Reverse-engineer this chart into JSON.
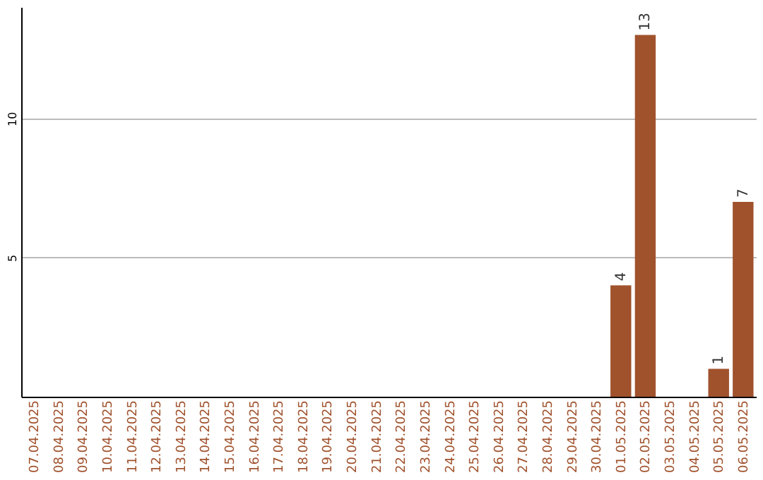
{
  "chart_data": {
    "type": "bar",
    "categories": [
      "07.04.2025",
      "08.04.2025",
      "09.04.2025",
      "10.04.2025",
      "11.04.2025",
      "12.04.2025",
      "13.04.2025",
      "14.04.2025",
      "15.04.2025",
      "16.04.2025",
      "17.04.2025",
      "18.04.2025",
      "19.04.2025",
      "20.04.2025",
      "21.04.2025",
      "22.04.2025",
      "23.04.2025",
      "24.04.2025",
      "25.04.2025",
      "26.04.2025",
      "27.04.2025",
      "28.04.2025",
      "29.04.2025",
      "30.04.2025",
      "01.05.2025",
      "02.05.2025",
      "03.05.2025",
      "04.05.2025",
      "05.05.2025",
      "06.05.2025"
    ],
    "values": [
      null,
      null,
      null,
      null,
      null,
      null,
      null,
      null,
      null,
      null,
      null,
      null,
      null,
      null,
      null,
      null,
      null,
      null,
      null,
      null,
      null,
      null,
      null,
      null,
      4,
      13,
      null,
      null,
      1,
      7
    ],
    "color": "#a0522d",
    "ylim": [
      0,
      14
    ],
    "yticks": [
      5,
      10
    ],
    "grid": "y",
    "data_labels": true
  }
}
